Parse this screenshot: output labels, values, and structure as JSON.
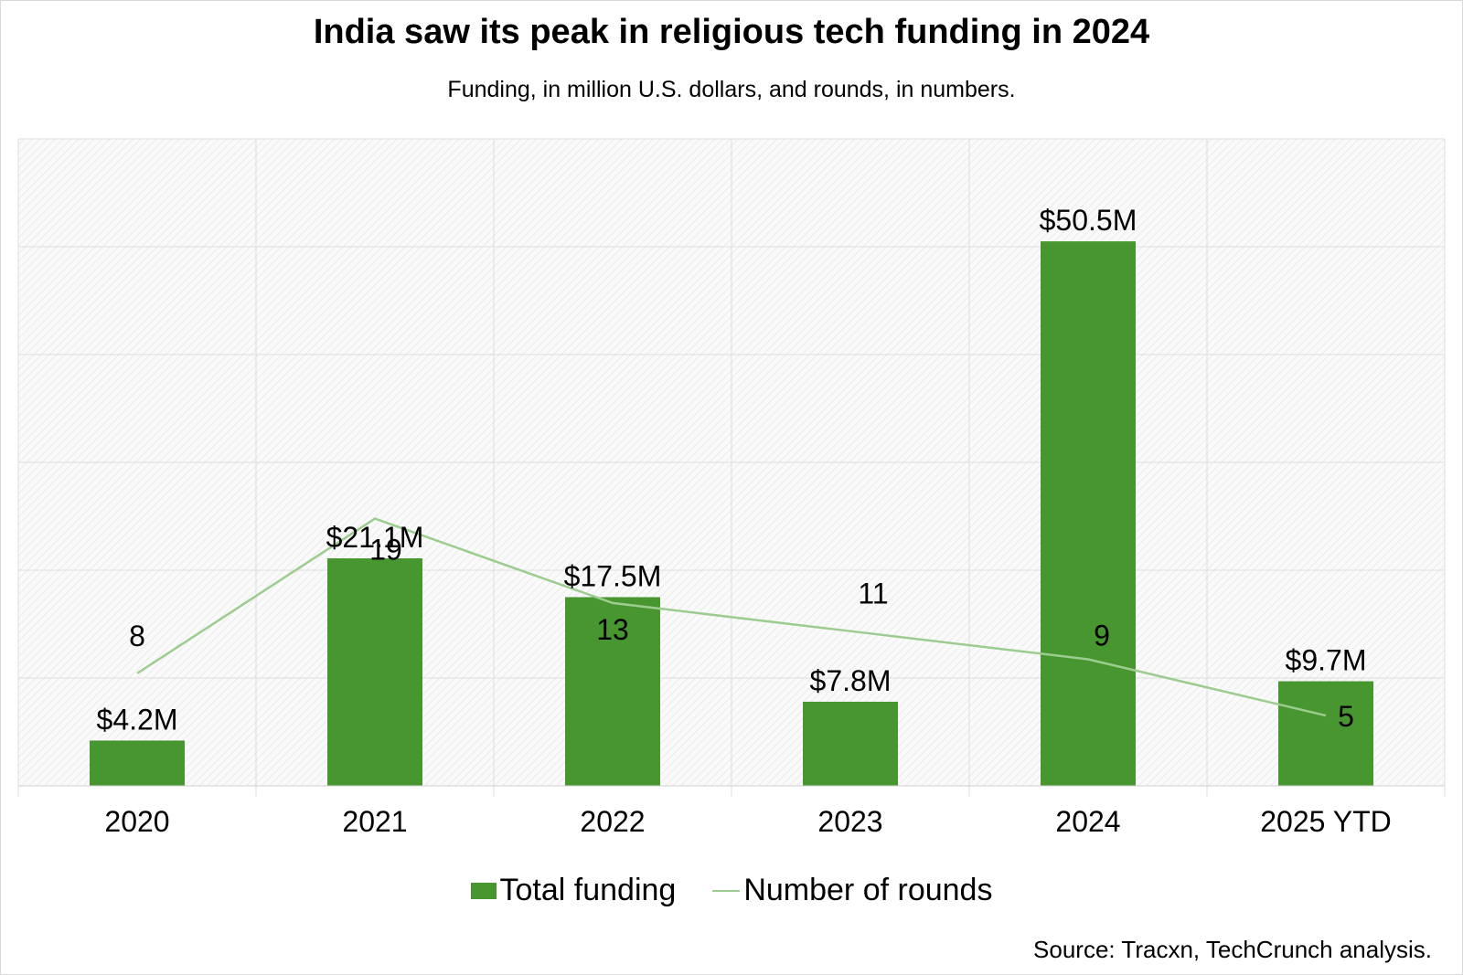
{
  "title": "India saw its peak in religious tech funding in 2024",
  "subtitle": "Funding, in million U.S. dollars, and rounds, in numbers.",
  "source": "Source: Tracxn, TechCrunch analysis.",
  "legend": {
    "bar_label": "Total funding",
    "line_label": "Number of rounds"
  },
  "colors": {
    "bar": "#47962f",
    "line": "#9ccc8f",
    "grid": "#dddddd",
    "hatch": "#e4e4e4"
  },
  "chart_data": {
    "type": "bar",
    "categories": [
      "2020",
      "2021",
      "2022",
      "2023",
      "2024",
      "2025 YTD"
    ],
    "series": [
      {
        "name": "Total funding",
        "type": "bar",
        "values": [
          4.2,
          21.1,
          17.5,
          7.8,
          50.5,
          9.7
        ],
        "labels": [
          "$4.2M",
          "$21.1M",
          "$17.5M",
          "$7.8M",
          "$50.5M",
          "$9.7M"
        ]
      },
      {
        "name": "Number of rounds",
        "type": "line",
        "values": [
          8,
          19,
          13,
          11,
          9,
          5
        ],
        "labels": [
          "8",
          "19",
          "13",
          "11",
          "9",
          "5"
        ]
      }
    ],
    "ylim": [
      0,
      60
    ],
    "grid": true,
    "legend_position": "bottom"
  }
}
